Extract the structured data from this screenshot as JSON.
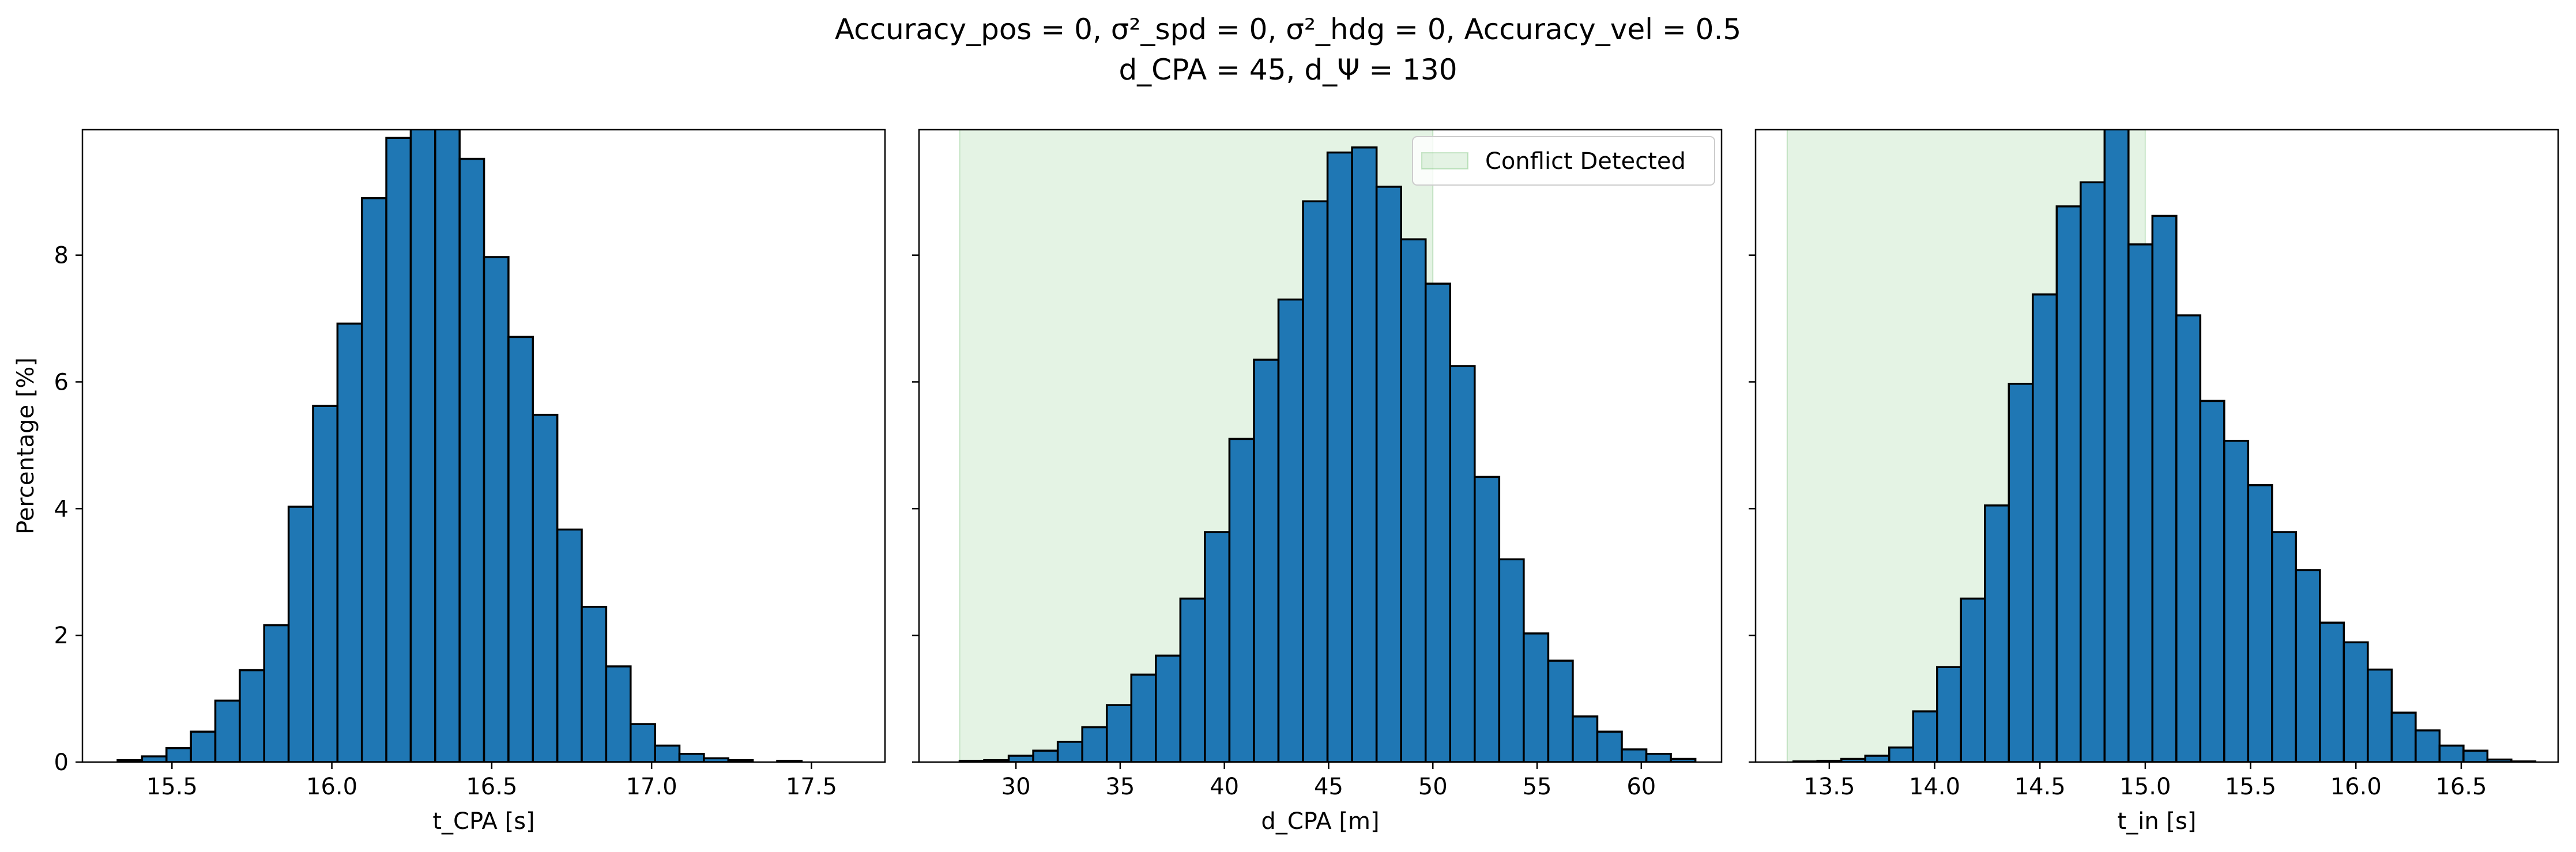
{
  "figure": {
    "title_line1": "Accuracy_pos = 0, σ²_spd = 0, σ²_hdg = 0, Accuracy_vel = 0.5",
    "title_line2": "d_CPA = 45, d_Ψ = 130"
  },
  "colors": {
    "bar": "#1f77b4",
    "bar_edge": "#000000",
    "shade": "#2ca02c"
  },
  "chart_data": [
    {
      "type": "bar",
      "xlabel": "t_CPA [s]",
      "ylabel": "Percentage [%]",
      "ylim": [
        0,
        9.98
      ],
      "xlim": [
        15.22,
        17.73
      ],
      "xticks": [
        15.5,
        16.0,
        16.5,
        17.0,
        17.5
      ],
      "xtick_labels": [
        "15.5",
        "16.0",
        "16.5",
        "17.0",
        "17.5"
      ],
      "yticks": [
        0,
        2,
        4,
        6,
        8
      ],
      "ytick_labels": [
        "0",
        "2",
        "4",
        "6",
        "8"
      ],
      "bin_start": 15.33,
      "bin_width": 0.0764,
      "values": [
        0.03,
        0.09,
        0.22,
        0.48,
        0.97,
        1.45,
        2.16,
        4.03,
        5.62,
        6.92,
        8.9,
        9.85,
        10.05,
        10.0,
        9.52,
        7.97,
        6.71,
        5.48,
        3.67,
        2.45,
        1.51,
        0.6,
        0.26,
        0.13,
        0.06,
        0.03,
        0.0,
        0.02
      ],
      "grid": false
    },
    {
      "type": "bar",
      "xlabel": "d_CPA [m]",
      "ylabel": "",
      "ylim": [
        0,
        9.98
      ],
      "xlim": [
        25.35,
        63.85
      ],
      "xticks": [
        30,
        35,
        40,
        45,
        50,
        55,
        60
      ],
      "xtick_labels": [
        "30",
        "35",
        "40",
        "45",
        "50",
        "55",
        "60"
      ],
      "yticks": [
        0,
        2,
        4,
        6,
        8
      ],
      "bin_start": 27.3,
      "bin_width": 1.1765,
      "values": [
        0.02,
        0.03,
        0.1,
        0.18,
        0.32,
        0.55,
        0.9,
        1.38,
        1.68,
        2.58,
        3.63,
        5.1,
        6.35,
        7.3,
        8.85,
        9.62,
        9.7,
        9.08,
        8.25,
        7.55,
        6.25,
        4.5,
        3.2,
        2.03,
        1.6,
        0.72,
        0.48,
        0.2,
        0.13,
        0.05
      ],
      "shade": {
        "from": 27.3,
        "to": 50.0
      },
      "legend": {
        "label": "Conflict Detected",
        "placement": "top-right"
      },
      "grid": false
    },
    {
      "type": "bar",
      "xlabel": "t_in [s]",
      "ylabel": "",
      "ylim": [
        0,
        9.98
      ],
      "xlim": [
        13.15,
        16.96
      ],
      "xticks": [
        13.5,
        14.0,
        14.5,
        15.0,
        15.5,
        16.0,
        16.5
      ],
      "xtick_labels": [
        "13.5",
        "14.0",
        "14.5",
        "15.0",
        "15.5",
        "16.0",
        "16.5"
      ],
      "yticks": [
        0,
        2,
        4,
        6,
        8
      ],
      "bin_start": 13.33,
      "bin_width": 0.1136,
      "values": [
        0.01,
        0.02,
        0.05,
        0.1,
        0.23,
        0.8,
        1.5,
        2.58,
        4.05,
        5.97,
        7.38,
        8.77,
        9.15,
        10.02,
        8.17,
        8.62,
        7.05,
        5.7,
        5.07,
        4.37,
        3.63,
        3.03,
        2.2,
        1.89,
        1.46,
        0.78,
        0.5,
        0.26,
        0.18,
        0.04,
        0.01
      ],
      "shade": {
        "from": 13.3,
        "to": 15.0
      },
      "grid": false
    }
  ]
}
